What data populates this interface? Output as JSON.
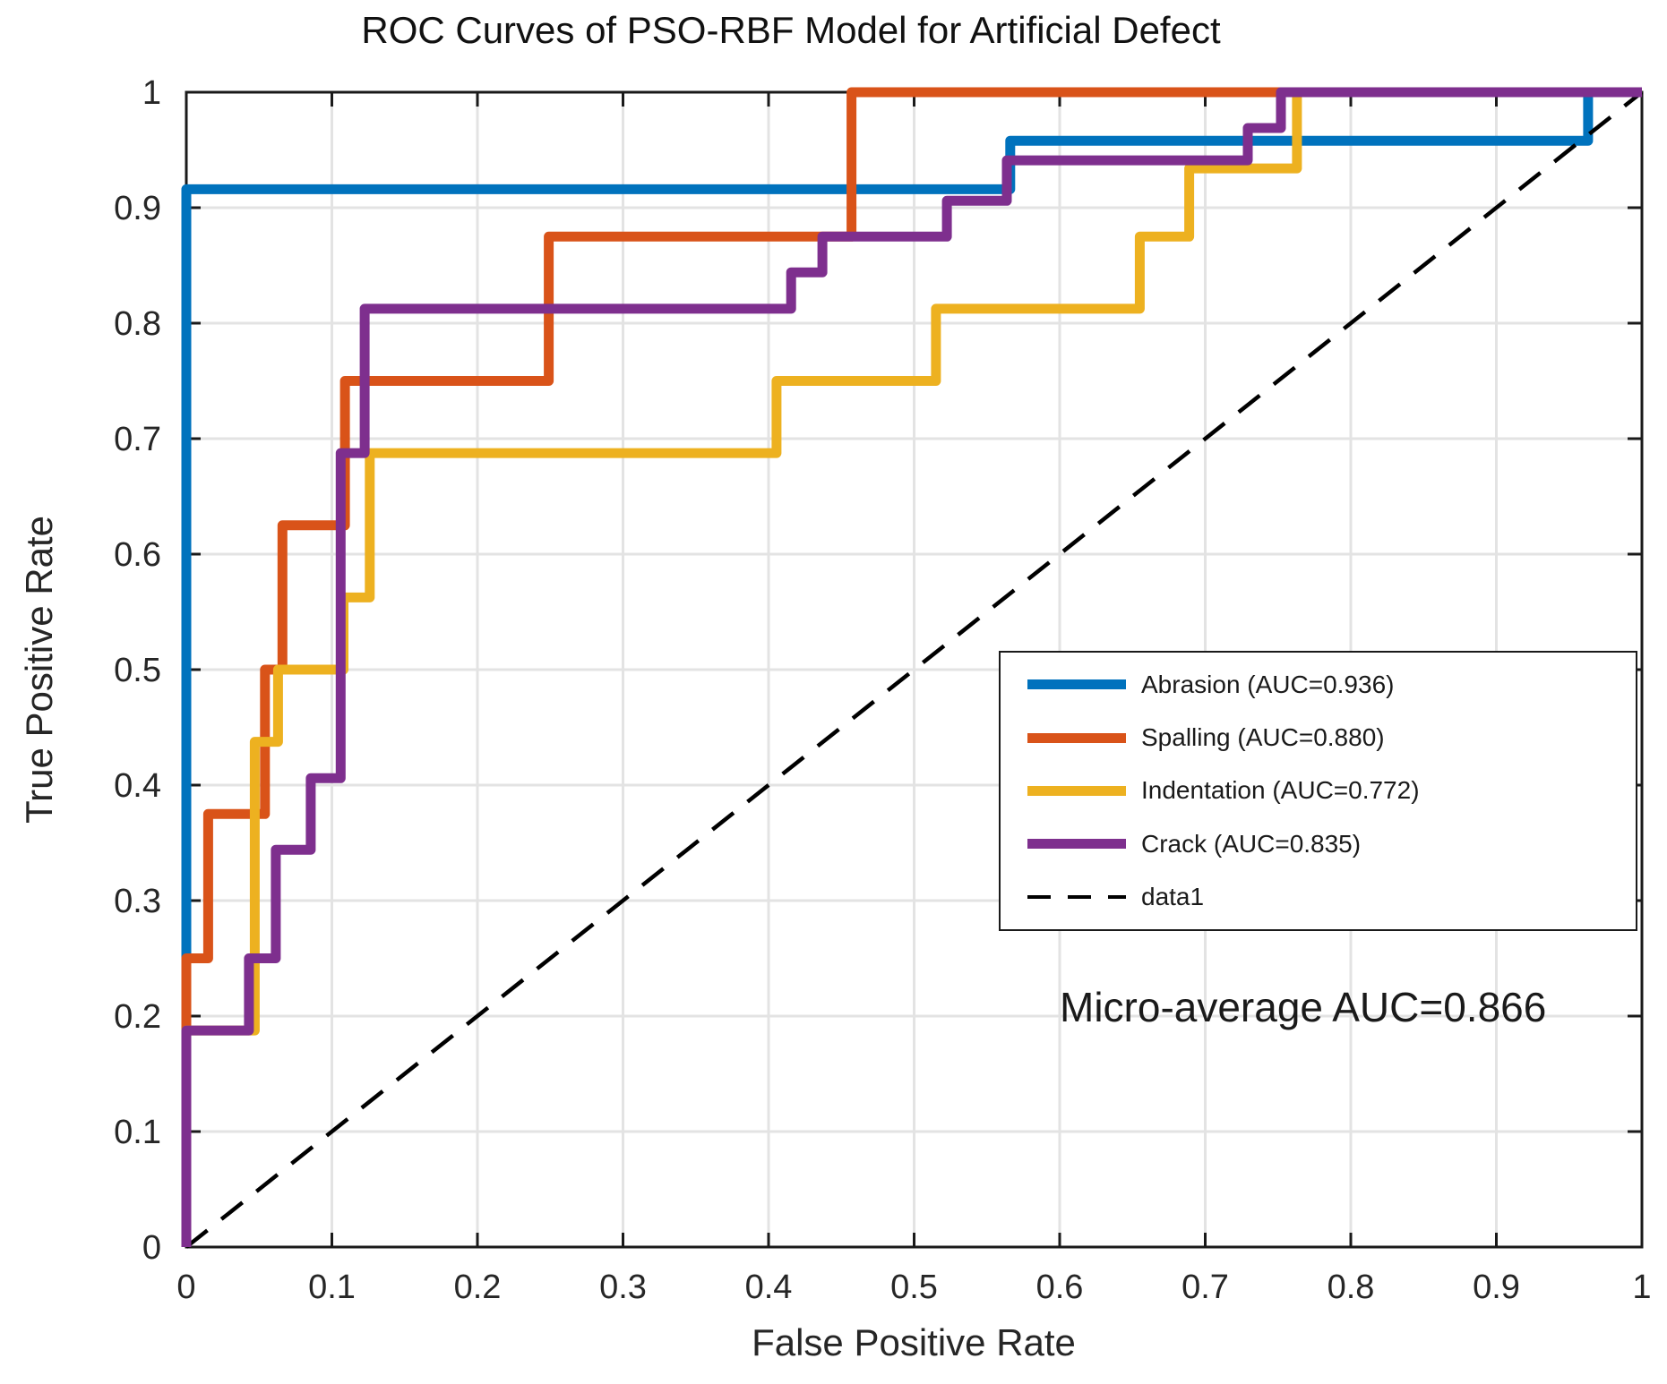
{
  "figure": {
    "title": "ROC Curves of PSO-RBF Model for Artificial Defect",
    "xlabel": "False Positive Rate",
    "ylabel": "True Positive Rate",
    "annotation": "Micro-average AUC=0.866"
  },
  "colors": {
    "abrasion": "#0072BD",
    "spalling": "#D95319",
    "indentation": "#EDB120",
    "crack": "#7E2F8E",
    "reference_line": "#000000",
    "grid": "#e3e3e3",
    "axis_box": "#1a1a1a",
    "tick_text": "#262626",
    "background": "#ffffff"
  },
  "legend": {
    "items": [
      {
        "label": "Abrasion (AUC=0.936)",
        "color": "#0072BD",
        "dashed": false
      },
      {
        "label": "Spalling (AUC=0.880)",
        "color": "#D95319",
        "dashed": false
      },
      {
        "label": "Indentation (AUC=0.772)",
        "color": "#EDB120",
        "dashed": false
      },
      {
        "label": "Crack (AUC=0.835)",
        "color": "#7E2F8E",
        "dashed": false
      },
      {
        "label": "data1",
        "color": "#000000",
        "dashed": true
      }
    ]
  },
  "chart_data": {
    "type": "line",
    "subtype": "roc-step-curves",
    "title": "ROC Curves of PSO-RBF Model for Artificial Defect",
    "xlabel": "False Positive Rate",
    "ylabel": "True Positive Rate",
    "xlim": [
      0,
      1
    ],
    "ylim": [
      0,
      1
    ],
    "grid": true,
    "legend_position": "inside-right-middle",
    "annotation": "Micro-average AUC=0.866",
    "micro_average_auc": 0.866,
    "xticks": [
      "0",
      "0.1",
      "0.2",
      "0.3",
      "0.4",
      "0.5",
      "0.6",
      "0.7",
      "0.8",
      "0.9",
      "1"
    ],
    "yticks": [
      "0",
      "0.1",
      "0.2",
      "0.3",
      "0.4",
      "0.5",
      "0.6",
      "0.7",
      "0.8",
      "0.9",
      "1"
    ],
    "series": [
      {
        "name": "Abrasion (AUC=0.936)",
        "auc": 0.936,
        "color": "#0072BD",
        "style": "solid",
        "points": [
          [
            0,
            0
          ],
          [
            0,
            0.916
          ],
          [
            0.566,
            0.916
          ],
          [
            0.566,
            0.958
          ],
          [
            0.963,
            0.958
          ],
          [
            0.963,
            1
          ],
          [
            1,
            1
          ]
        ]
      },
      {
        "name": "Spalling (AUC=0.880)",
        "auc": 0.88,
        "color": "#D95319",
        "style": "solid",
        "points": [
          [
            0,
            0
          ],
          [
            0,
            0.25
          ],
          [
            0.015,
            0.25
          ],
          [
            0.015,
            0.375
          ],
          [
            0.054,
            0.375
          ],
          [
            0.054,
            0.5
          ],
          [
            0.066,
            0.5
          ],
          [
            0.066,
            0.625
          ],
          [
            0.109,
            0.625
          ],
          [
            0.109,
            0.75
          ],
          [
            0.249,
            0.75
          ],
          [
            0.249,
            0.875
          ],
          [
            0.457,
            0.875
          ],
          [
            0.457,
            1
          ],
          [
            1,
            1
          ]
        ]
      },
      {
        "name": "Indentation (AUC=0.772)",
        "auc": 0.772,
        "color": "#EDB120",
        "style": "solid",
        "points": [
          [
            0,
            0
          ],
          [
            0,
            0.1875
          ],
          [
            0.047,
            0.1875
          ],
          [
            0.047,
            0.4375
          ],
          [
            0.063,
            0.4375
          ],
          [
            0.063,
            0.5
          ],
          [
            0.108,
            0.5
          ],
          [
            0.108,
            0.5625
          ],
          [
            0.126,
            0.5625
          ],
          [
            0.126,
            0.6875
          ],
          [
            0.4055,
            0.6875
          ],
          [
            0.4055,
            0.75
          ],
          [
            0.515,
            0.75
          ],
          [
            0.515,
            0.8125
          ],
          [
            0.655,
            0.8125
          ],
          [
            0.655,
            0.875
          ],
          [
            0.689,
            0.875
          ],
          [
            0.689,
            0.934
          ],
          [
            0.763,
            0.934
          ],
          [
            0.763,
            1
          ],
          [
            1,
            1
          ]
        ]
      },
      {
        "name": "Crack (AUC=0.835)",
        "auc": 0.835,
        "color": "#7E2F8E",
        "style": "solid",
        "points": [
          [
            0,
            0
          ],
          [
            0,
            0.1875
          ],
          [
            0.043,
            0.1875
          ],
          [
            0.043,
            0.25
          ],
          [
            0.0615,
            0.25
          ],
          [
            0.0615,
            0.344
          ],
          [
            0.0855,
            0.344
          ],
          [
            0.0855,
            0.406
          ],
          [
            0.106,
            0.406
          ],
          [
            0.106,
            0.6875
          ],
          [
            0.1225,
            0.6875
          ],
          [
            0.1225,
            0.8125
          ],
          [
            0.4155,
            0.8125
          ],
          [
            0.4155,
            0.844
          ],
          [
            0.437,
            0.844
          ],
          [
            0.437,
            0.875
          ],
          [
            0.5225,
            0.875
          ],
          [
            0.5225,
            0.906
          ],
          [
            0.5637,
            0.906
          ],
          [
            0.5637,
            0.941
          ],
          [
            0.7292,
            0.941
          ],
          [
            0.7292,
            0.969
          ],
          [
            0.752,
            0.969
          ],
          [
            0.752,
            1
          ],
          [
            1,
            1
          ]
        ]
      },
      {
        "name": "data1",
        "color": "#000000",
        "style": "dashed",
        "points": [
          [
            0,
            0
          ],
          [
            1,
            1
          ]
        ]
      }
    ]
  }
}
